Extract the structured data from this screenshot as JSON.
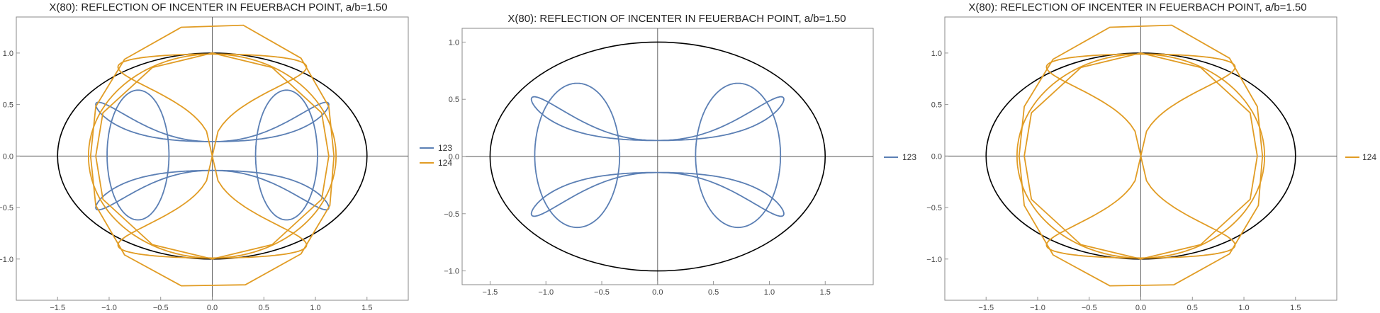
{
  "chart_data": [
    {
      "type": "line",
      "title": "X(80): REFLECTION OF INCENTER IN FEUERBACH POINT, a/b=1.50",
      "xlim": [
        -1.9,
        1.9
      ],
      "ylim": [
        -1.4,
        1.35
      ],
      "xticks": [
        -1.5,
        -1.0,
        -0.5,
        0.0,
        0.5,
        1.0,
        1.5
      ],
      "yticks": [
        -1.0,
        -0.5,
        0.0,
        0.5,
        1.0
      ],
      "tick_labels_x": [
        "−1.5",
        "−1.0",
        "−0.5",
        "0.0",
        "0.5",
        "1.0",
        "1.5"
      ],
      "tick_labels_y": [
        "−1.0",
        "−0.5",
        "0.0",
        "0.5",
        "1.0"
      ],
      "grid": false,
      "legend_position": "right",
      "reference_ellipse": {
        "a": 1.5,
        "b": 1.0,
        "color": "#000000"
      },
      "series": [
        {
          "name": "123",
          "color": "#5b7fb4",
          "family": "loops"
        },
        {
          "name": "124",
          "color": "#e19c24",
          "family": "bands"
        }
      ]
    },
    {
      "type": "line",
      "title": "X(80): REFLECTION OF INCENTER IN FEUERBACH POINT, a/b=1.50",
      "xlim": [
        -1.75,
        1.93
      ],
      "ylim": [
        -1.12,
        1.12
      ],
      "xticks": [
        -1.5,
        -1.0,
        -0.5,
        0.0,
        0.5,
        1.0,
        1.5
      ],
      "yticks": [
        -1.0,
        -0.5,
        0.0,
        0.5,
        1.0
      ],
      "tick_labels_x": [
        "−1.5",
        "−1.0",
        "−0.5",
        "0.0",
        "0.5",
        "1.0",
        "1.5"
      ],
      "tick_labels_y": [
        "−1.0",
        "−0.5",
        "0.0",
        "0.5",
        "1.0"
      ],
      "grid": false,
      "legend_position": "right",
      "reference_ellipse": {
        "a": 1.5,
        "b": 1.0,
        "color": "#000000"
      },
      "series": [
        {
          "name": "123",
          "color": "#5b7fb4",
          "family": "loops"
        }
      ]
    },
    {
      "type": "line",
      "title": "X(80): REFLECTION OF INCENTER IN FEUERBACH POINT, a/b=1.50",
      "xlim": [
        -1.9,
        1.9
      ],
      "ylim": [
        -1.4,
        1.35
      ],
      "xticks": [
        -1.5,
        -1.0,
        -0.5,
        0.0,
        0.5,
        1.0,
        1.5
      ],
      "yticks": [
        -1.0,
        -0.5,
        0.0,
        0.5,
        1.0
      ],
      "tick_labels_x": [
        "−1.5",
        "−1.0",
        "−0.5",
        "0.0",
        "0.5",
        "1.0",
        "1.5"
      ],
      "tick_labels_y": [
        "−1.0",
        "−0.5",
        "0.0",
        "0.5",
        "1.0"
      ],
      "grid": false,
      "legend_position": "right",
      "reference_ellipse": {
        "a": 1.5,
        "b": 1.0,
        "color": "#000000"
      },
      "series": [
        {
          "name": "124",
          "color": "#e19c24",
          "family": "bands"
        }
      ]
    }
  ]
}
